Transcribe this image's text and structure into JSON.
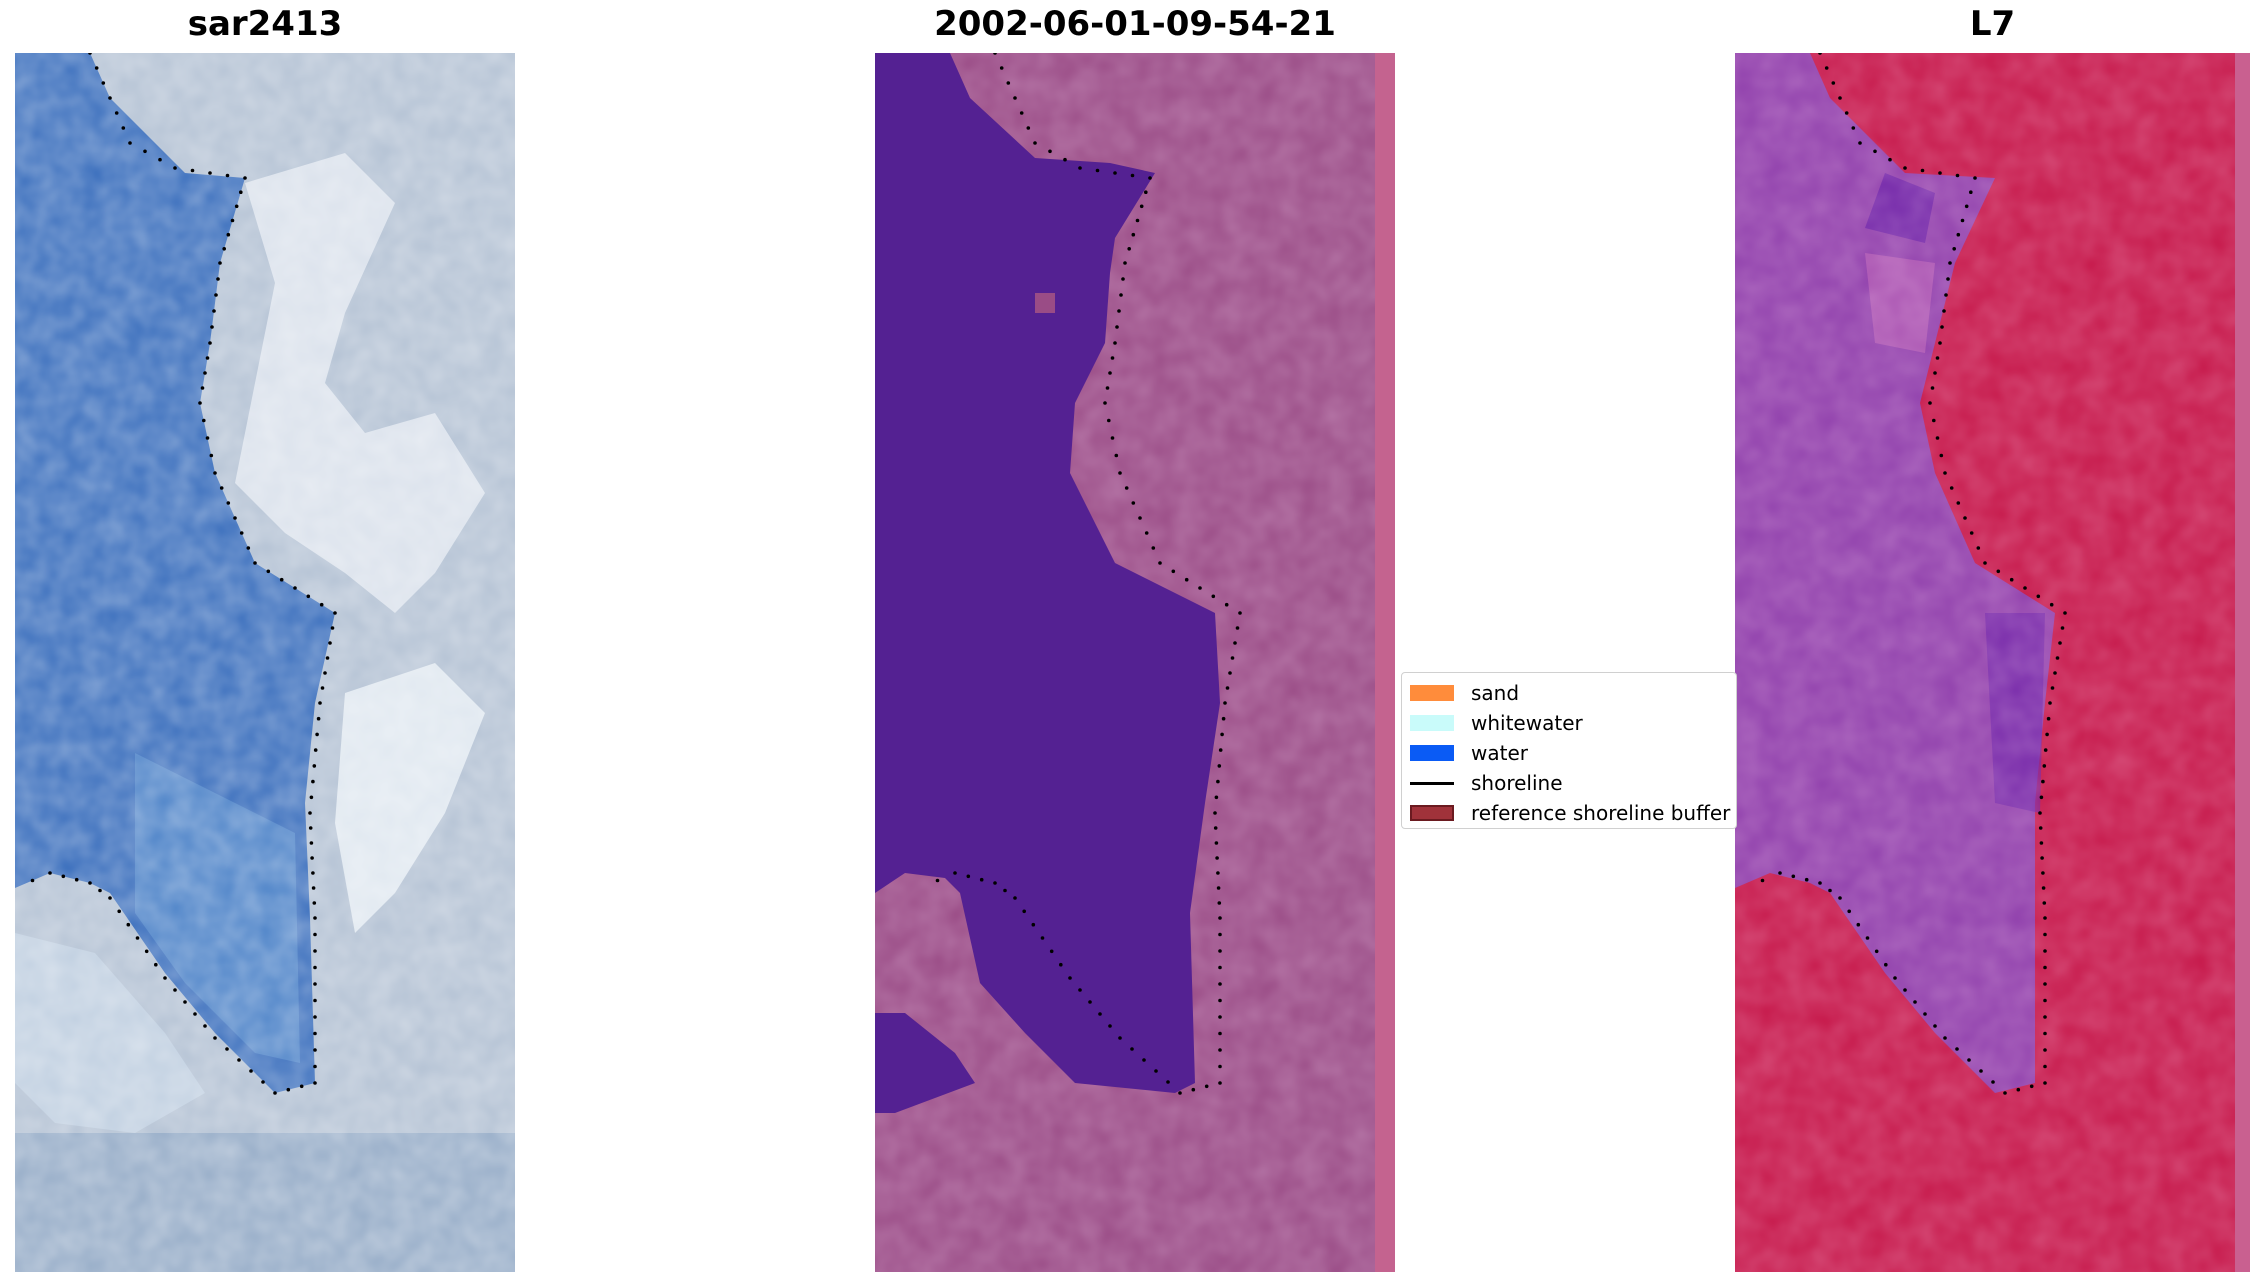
{
  "panels": [
    {
      "title": "sar2413",
      "image": "rgb-satellite-image"
    },
    {
      "title": "2002-06-01-09-54-21",
      "image": "classified-image"
    },
    {
      "title": "L7",
      "image": "mndwi-image"
    }
  ],
  "legend": {
    "items": [
      {
        "label": "sand",
        "color": "#ff8c3b",
        "kind": "patch"
      },
      {
        "label": "whitewater",
        "color": "#c9fbfa",
        "kind": "patch"
      },
      {
        "label": "water",
        "color": "#0a5bf5",
        "kind": "patch"
      },
      {
        "label": "shoreline",
        "color": "#000000",
        "kind": "line"
      },
      {
        "label": "reference shoreline buffer",
        "color": "#a0323a",
        "kind": "patch"
      }
    ]
  },
  "colors": {
    "rgb_water": "#3d72c0",
    "rgb_land": "#aebdd0",
    "class_water": "#542192",
    "class_land": "#a0528e",
    "index_water": "#8a3db0",
    "index_land": "#c81848",
    "shoreline": "#000000"
  }
}
